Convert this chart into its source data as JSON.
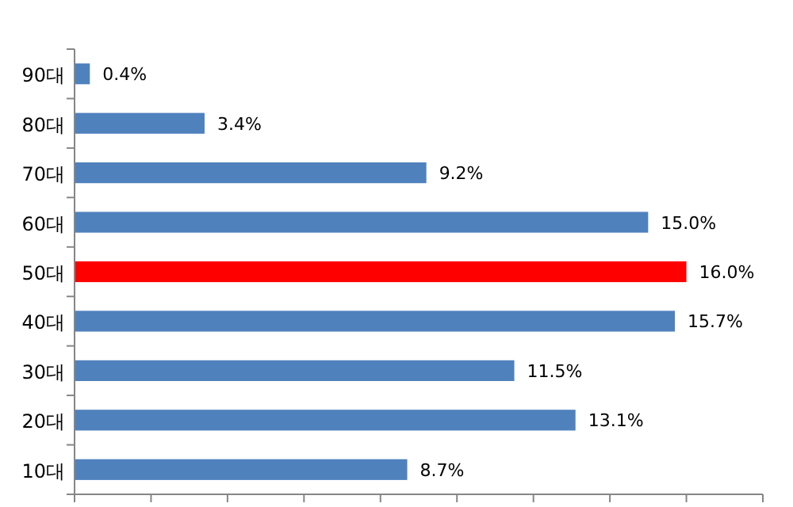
{
  "chart_data": {
    "type": "bar",
    "orientation": "horizontal",
    "categories": [
      "90대",
      "80대",
      "70대",
      "60대",
      "50대",
      "40대",
      "30대",
      "20대",
      "10대"
    ],
    "values": [
      0.4,
      3.4,
      9.2,
      15.0,
      16.0,
      15.7,
      11.5,
      13.1,
      8.7
    ],
    "colors": [
      "#4f81bd",
      "#4f81bd",
      "#4f81bd",
      "#4f81bd",
      "#ff0000",
      "#4f81bd",
      "#4f81bd",
      "#4f81bd",
      "#4f81bd"
    ],
    "value_labels": [
      "0.4%",
      "3.4%",
      "9.2%",
      "15.0%",
      "16.0%",
      "15.7%",
      "11.5%",
      "13.1%",
      "8.7%"
    ],
    "xlim": [
      0,
      18
    ],
    "xticks": [
      {
        "value": 0,
        "label": null
      },
      {
        "value": 2,
        "label": null
      },
      {
        "value": 4,
        "label": null
      },
      {
        "value": 6,
        "label": null
      },
      {
        "value": 8,
        "label": null
      },
      {
        "value": 10,
        "label": null
      },
      {
        "value": 12,
        "label": null
      },
      {
        "value": 14,
        "label": null
      },
      {
        "value": 16,
        "label": null
      },
      {
        "value": 18,
        "label": null
      }
    ],
    "tick_labels": "y",
    "grid": false
  }
}
